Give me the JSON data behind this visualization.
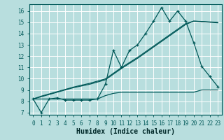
{
  "xlabel": "Humidex (Indice chaleur)",
  "bg_color": "#b8dede",
  "grid_color": "#ffffff",
  "line_color": "#005858",
  "x_data": [
    0,
    1,
    2,
    3,
    4,
    5,
    6,
    7,
    8,
    9,
    10,
    11,
    12,
    13,
    14,
    15,
    16,
    17,
    18,
    19,
    20,
    21,
    22,
    23
  ],
  "y_main": [
    8.2,
    7.0,
    8.2,
    8.3,
    8.1,
    8.1,
    8.1,
    8.1,
    8.2,
    9.5,
    12.5,
    11.0,
    12.5,
    13.0,
    14.0,
    15.1,
    16.3,
    15.1,
    16.0,
    15.1,
    13.2,
    11.1,
    10.2,
    9.3
  ],
  "y_linear1": [
    8.2,
    8.4,
    8.6,
    8.8,
    9.0,
    9.2,
    9.35,
    9.5,
    9.7,
    9.9,
    10.4,
    10.9,
    11.35,
    11.8,
    12.3,
    12.8,
    13.3,
    13.8,
    14.3,
    14.8,
    15.1,
    15.05,
    15.0,
    14.95
  ],
  "y_linear2": [
    8.2,
    8.45,
    8.65,
    8.85,
    9.05,
    9.25,
    9.42,
    9.58,
    9.78,
    9.98,
    10.48,
    10.98,
    11.43,
    11.88,
    12.38,
    12.88,
    13.38,
    13.88,
    14.38,
    14.88,
    15.1,
    15.07,
    15.03,
    15.0
  ],
  "y_flat": [
    8.2,
    8.2,
    8.2,
    8.2,
    8.2,
    8.2,
    8.2,
    8.2,
    8.2,
    8.5,
    8.7,
    8.8,
    8.8,
    8.8,
    8.8,
    8.8,
    8.8,
    8.8,
    8.8,
    8.8,
    8.8,
    9.0,
    9.0,
    9.0
  ],
  "xlim": [
    -0.5,
    23.5
  ],
  "ylim": [
    6.8,
    16.6
  ],
  "yticks": [
    7,
    8,
    9,
    10,
    11,
    12,
    13,
    14,
    15,
    16
  ],
  "xticks": [
    0,
    1,
    2,
    3,
    4,
    5,
    6,
    7,
    8,
    9,
    10,
    11,
    12,
    13,
    14,
    15,
    16,
    17,
    18,
    19,
    20,
    21,
    22,
    23
  ],
  "tick_fontsize": 5.5,
  "xlabel_fontsize": 7.0
}
